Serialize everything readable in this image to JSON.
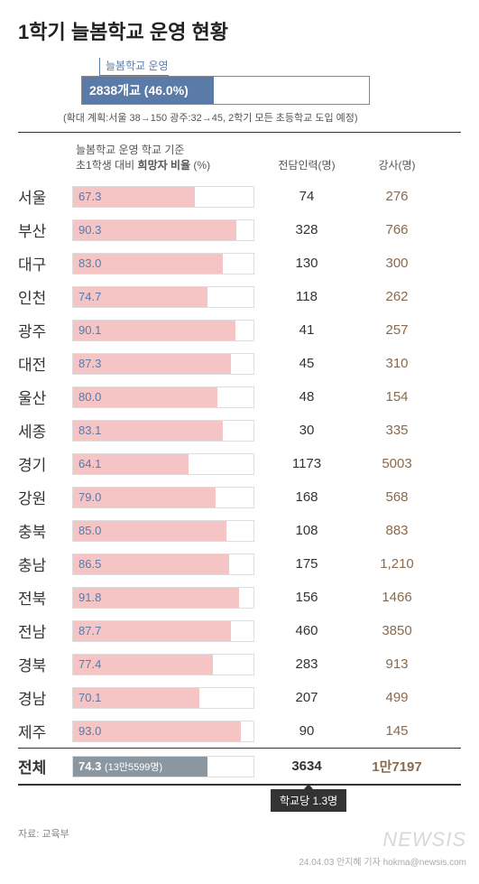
{
  "title": "1학기 늘봄학교 운영 현황",
  "summary": {
    "legend_label": "늘봄학교 운영",
    "operation_text": "2838개교 (46.0%)",
    "fill_percent": 46.0,
    "fill_style": "width:46%",
    "expansion_note": "(확대 계획:서울 38→150 광주:32→45, 2학기 모든 초등학교 도입 예정)"
  },
  "headers": {
    "bar_line1": "늘봄학교 운영 학교 기준",
    "bar_line2a": "초1학생 대비 ",
    "bar_line2b": "희망자 비율",
    "bar_line2c": " (%)",
    "staff": "전담인력(명)",
    "instructors": "강사(명)"
  },
  "chart": {
    "type": "bar",
    "bar_color": "#f5c4c4",
    "bar_text_color": "#5a7aa8",
    "bar_border": "#dddddd",
    "track_bg": "#ffffff",
    "value_fontsize": 13,
    "xlim": [
      0,
      100
    ]
  },
  "rows": [
    {
      "region": "서울",
      "value": 67.3,
      "staff": "74",
      "instructors": "276"
    },
    {
      "region": "부산",
      "value": 90.3,
      "staff": "328",
      "instructors": "766"
    },
    {
      "region": "대구",
      "value": 83.0,
      "staff": "130",
      "instructors": "300"
    },
    {
      "region": "인천",
      "value": 74.7,
      "staff": "118",
      "instructors": "262"
    },
    {
      "region": "광주",
      "value": 90.1,
      "staff": "41",
      "instructors": "257"
    },
    {
      "region": "대전",
      "value": 87.3,
      "staff": "45",
      "instructors": "310"
    },
    {
      "region": "울산",
      "value": 80.0,
      "staff": "48",
      "instructors": "154"
    },
    {
      "region": "세종",
      "value": 83.1,
      "staff": "30",
      "instructors": "335"
    },
    {
      "region": "경기",
      "value": 64.1,
      "staff": "1173",
      "instructors": "5003"
    },
    {
      "region": "강원",
      "value": 79.0,
      "staff": "168",
      "instructors": "568"
    },
    {
      "region": "충북",
      "value": 85.0,
      "staff": "108",
      "instructors": "883"
    },
    {
      "region": "충남",
      "value": 86.5,
      "staff": "175",
      "instructors": "1,210"
    },
    {
      "region": "전북",
      "value": 91.8,
      "staff": "156",
      "instructors": "1466"
    },
    {
      "region": "전남",
      "value": 87.7,
      "staff": "460",
      "instructors": "3850"
    },
    {
      "region": "경북",
      "value": 77.4,
      "staff": "283",
      "instructors": "913"
    },
    {
      "region": "경남",
      "value": 70.1,
      "staff": "207",
      "instructors": "499"
    },
    {
      "region": "제주",
      "value": 93.0,
      "staff": "90",
      "instructors": "145"
    }
  ],
  "total": {
    "label": "전체",
    "value": "74.3",
    "count": "(13만5599명)",
    "bar_style": "width:74.3%",
    "staff": "3634",
    "instructors": "1만7197",
    "per_school": "학교당 1.3명"
  },
  "source": "자료:  교육부",
  "watermark": "NEWSIS",
  "credit": "24.04.03 안지혜 기자 hokma@newsis.com"
}
